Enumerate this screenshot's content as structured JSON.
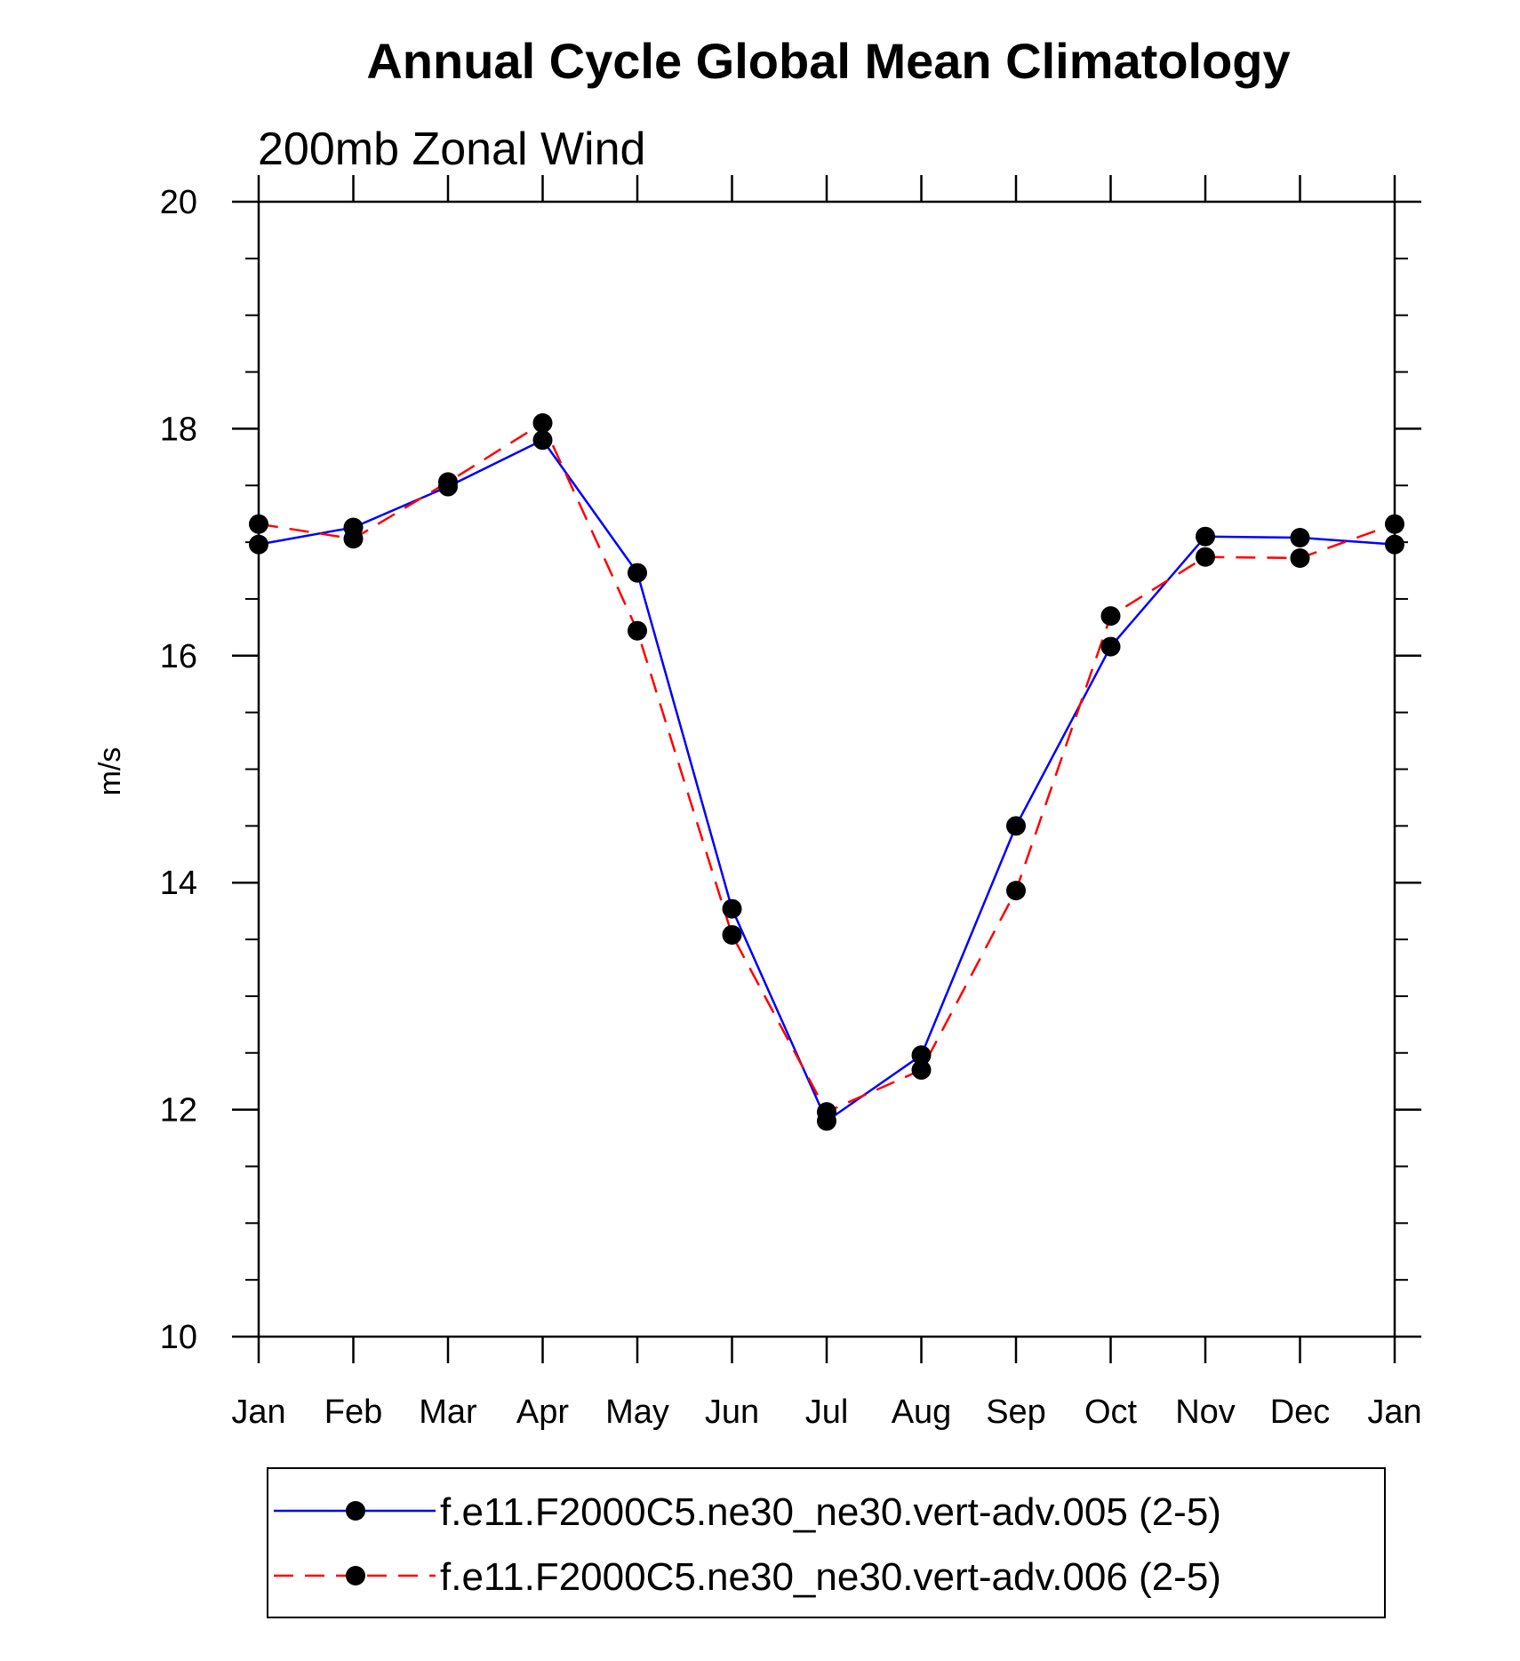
{
  "chart_data": {
    "type": "line",
    "title": "Annual Cycle Global Mean Climatology",
    "subtitle": "200mb Zonal Wind",
    "xlabel": "",
    "ylabel": "m/s",
    "categories": [
      "Jan",
      "Feb",
      "Mar",
      "Apr",
      "May",
      "Jun",
      "Jul",
      "Aug",
      "Sep",
      "Oct",
      "Nov",
      "Dec",
      "Jan"
    ],
    "ylim": [
      10,
      20
    ],
    "yticks": [
      10,
      12,
      14,
      16,
      18,
      20
    ],
    "yticklabels": [
      "10",
      "12",
      "14",
      "16",
      "18",
      "20"
    ],
    "series": [
      {
        "name": "f.e11.F2000C5.ne30_ne30.vert-adv.005 (2-5)",
        "color": "#0000ff",
        "dash": "solid",
        "values": [
          16.98,
          17.13,
          17.49,
          17.9,
          16.73,
          13.77,
          11.9,
          12.48,
          14.5,
          16.08,
          17.05,
          17.04,
          16.98
        ]
      },
      {
        "name": "f.e11.F2000C5.ne30_ne30.vert-adv.006 (2-5)",
        "color": "#ff0000",
        "dash": "dashed",
        "values": [
          17.16,
          17.03,
          17.53,
          18.05,
          16.22,
          13.54,
          11.98,
          12.35,
          13.93,
          16.35,
          16.87,
          16.86,
          17.16
        ]
      }
    ],
    "legend_position": "bottom"
  }
}
